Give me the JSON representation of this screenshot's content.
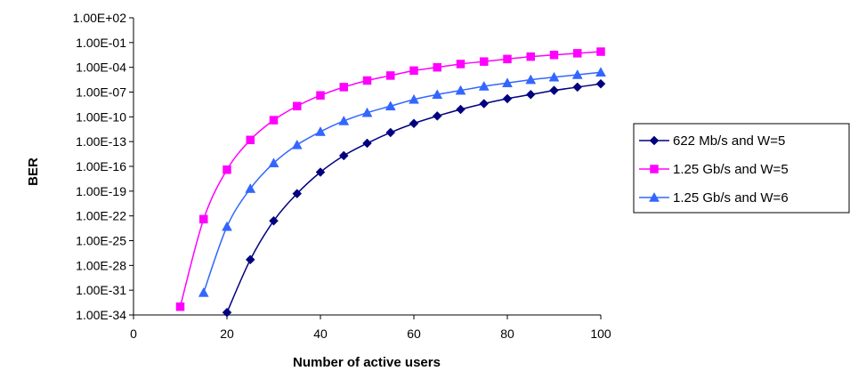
{
  "chart_data": {
    "type": "line",
    "xlabel": "Number of active users",
    "ylabel": "BER",
    "xlim": [
      0,
      100
    ],
    "x_ticks": [
      "0",
      "20",
      "40",
      "60",
      "80",
      "100"
    ],
    "y_scale": "log10",
    "ylim_exponent": [
      -34,
      2
    ],
    "y_ticks": [
      "1.00E+02",
      "1.00E-01",
      "1.00E-04",
      "1.00E-07",
      "1.00E-10",
      "1.00E-13",
      "1.00E-16",
      "1.00E-19",
      "1.00E-22",
      "1.00E-25",
      "1.00E-28",
      "1.00E-31",
      "1.00E-34"
    ],
    "grid": false,
    "legend_position": "right",
    "series": [
      {
        "name": "622 Mb/s and W=5",
        "color": "#000080",
        "marker": "diamond",
        "x": [
          20,
          25,
          30,
          35,
          40,
          45,
          50,
          55,
          60,
          65,
          70,
          75,
          80,
          85,
          90,
          95,
          100
        ],
        "log10_y": [
          -33.7,
          -27.3,
          -22.6,
          -19.3,
          -16.7,
          -14.7,
          -13.2,
          -11.9,
          -10.8,
          -9.9,
          -9.1,
          -8.4,
          -7.8,
          -7.3,
          -6.8,
          -6.4,
          -6.0
        ]
      },
      {
        "name": "1.25 Gb/s and W=5",
        "color": "#ff00ff",
        "marker": "square",
        "x": [
          10,
          15,
          20,
          25,
          30,
          35,
          40,
          45,
          50,
          55,
          60,
          65,
          70,
          75,
          80,
          85,
          90,
          95,
          100
        ],
        "log10_y": [
          -33.0,
          -22.4,
          -16.4,
          -12.8,
          -10.4,
          -8.7,
          -7.4,
          -6.4,
          -5.6,
          -5.0,
          -4.4,
          -4.0,
          -3.6,
          -3.3,
          -3.0,
          -2.7,
          -2.5,
          -2.3,
          -2.1
        ]
      },
      {
        "name": "1.25 Gb/s and W=6",
        "color": "#3366ff",
        "marker": "triangle",
        "x": [
          15,
          20,
          25,
          30,
          35,
          40,
          45,
          50,
          55,
          60,
          65,
          70,
          75,
          80,
          85,
          90,
          95,
          100
        ],
        "log10_y": [
          -31.3,
          -23.3,
          -18.7,
          -15.6,
          -13.4,
          -11.8,
          -10.5,
          -9.5,
          -8.7,
          -7.9,
          -7.3,
          -6.8,
          -6.3,
          -5.9,
          -5.5,
          -5.2,
          -4.9,
          -4.6
        ]
      }
    ]
  }
}
